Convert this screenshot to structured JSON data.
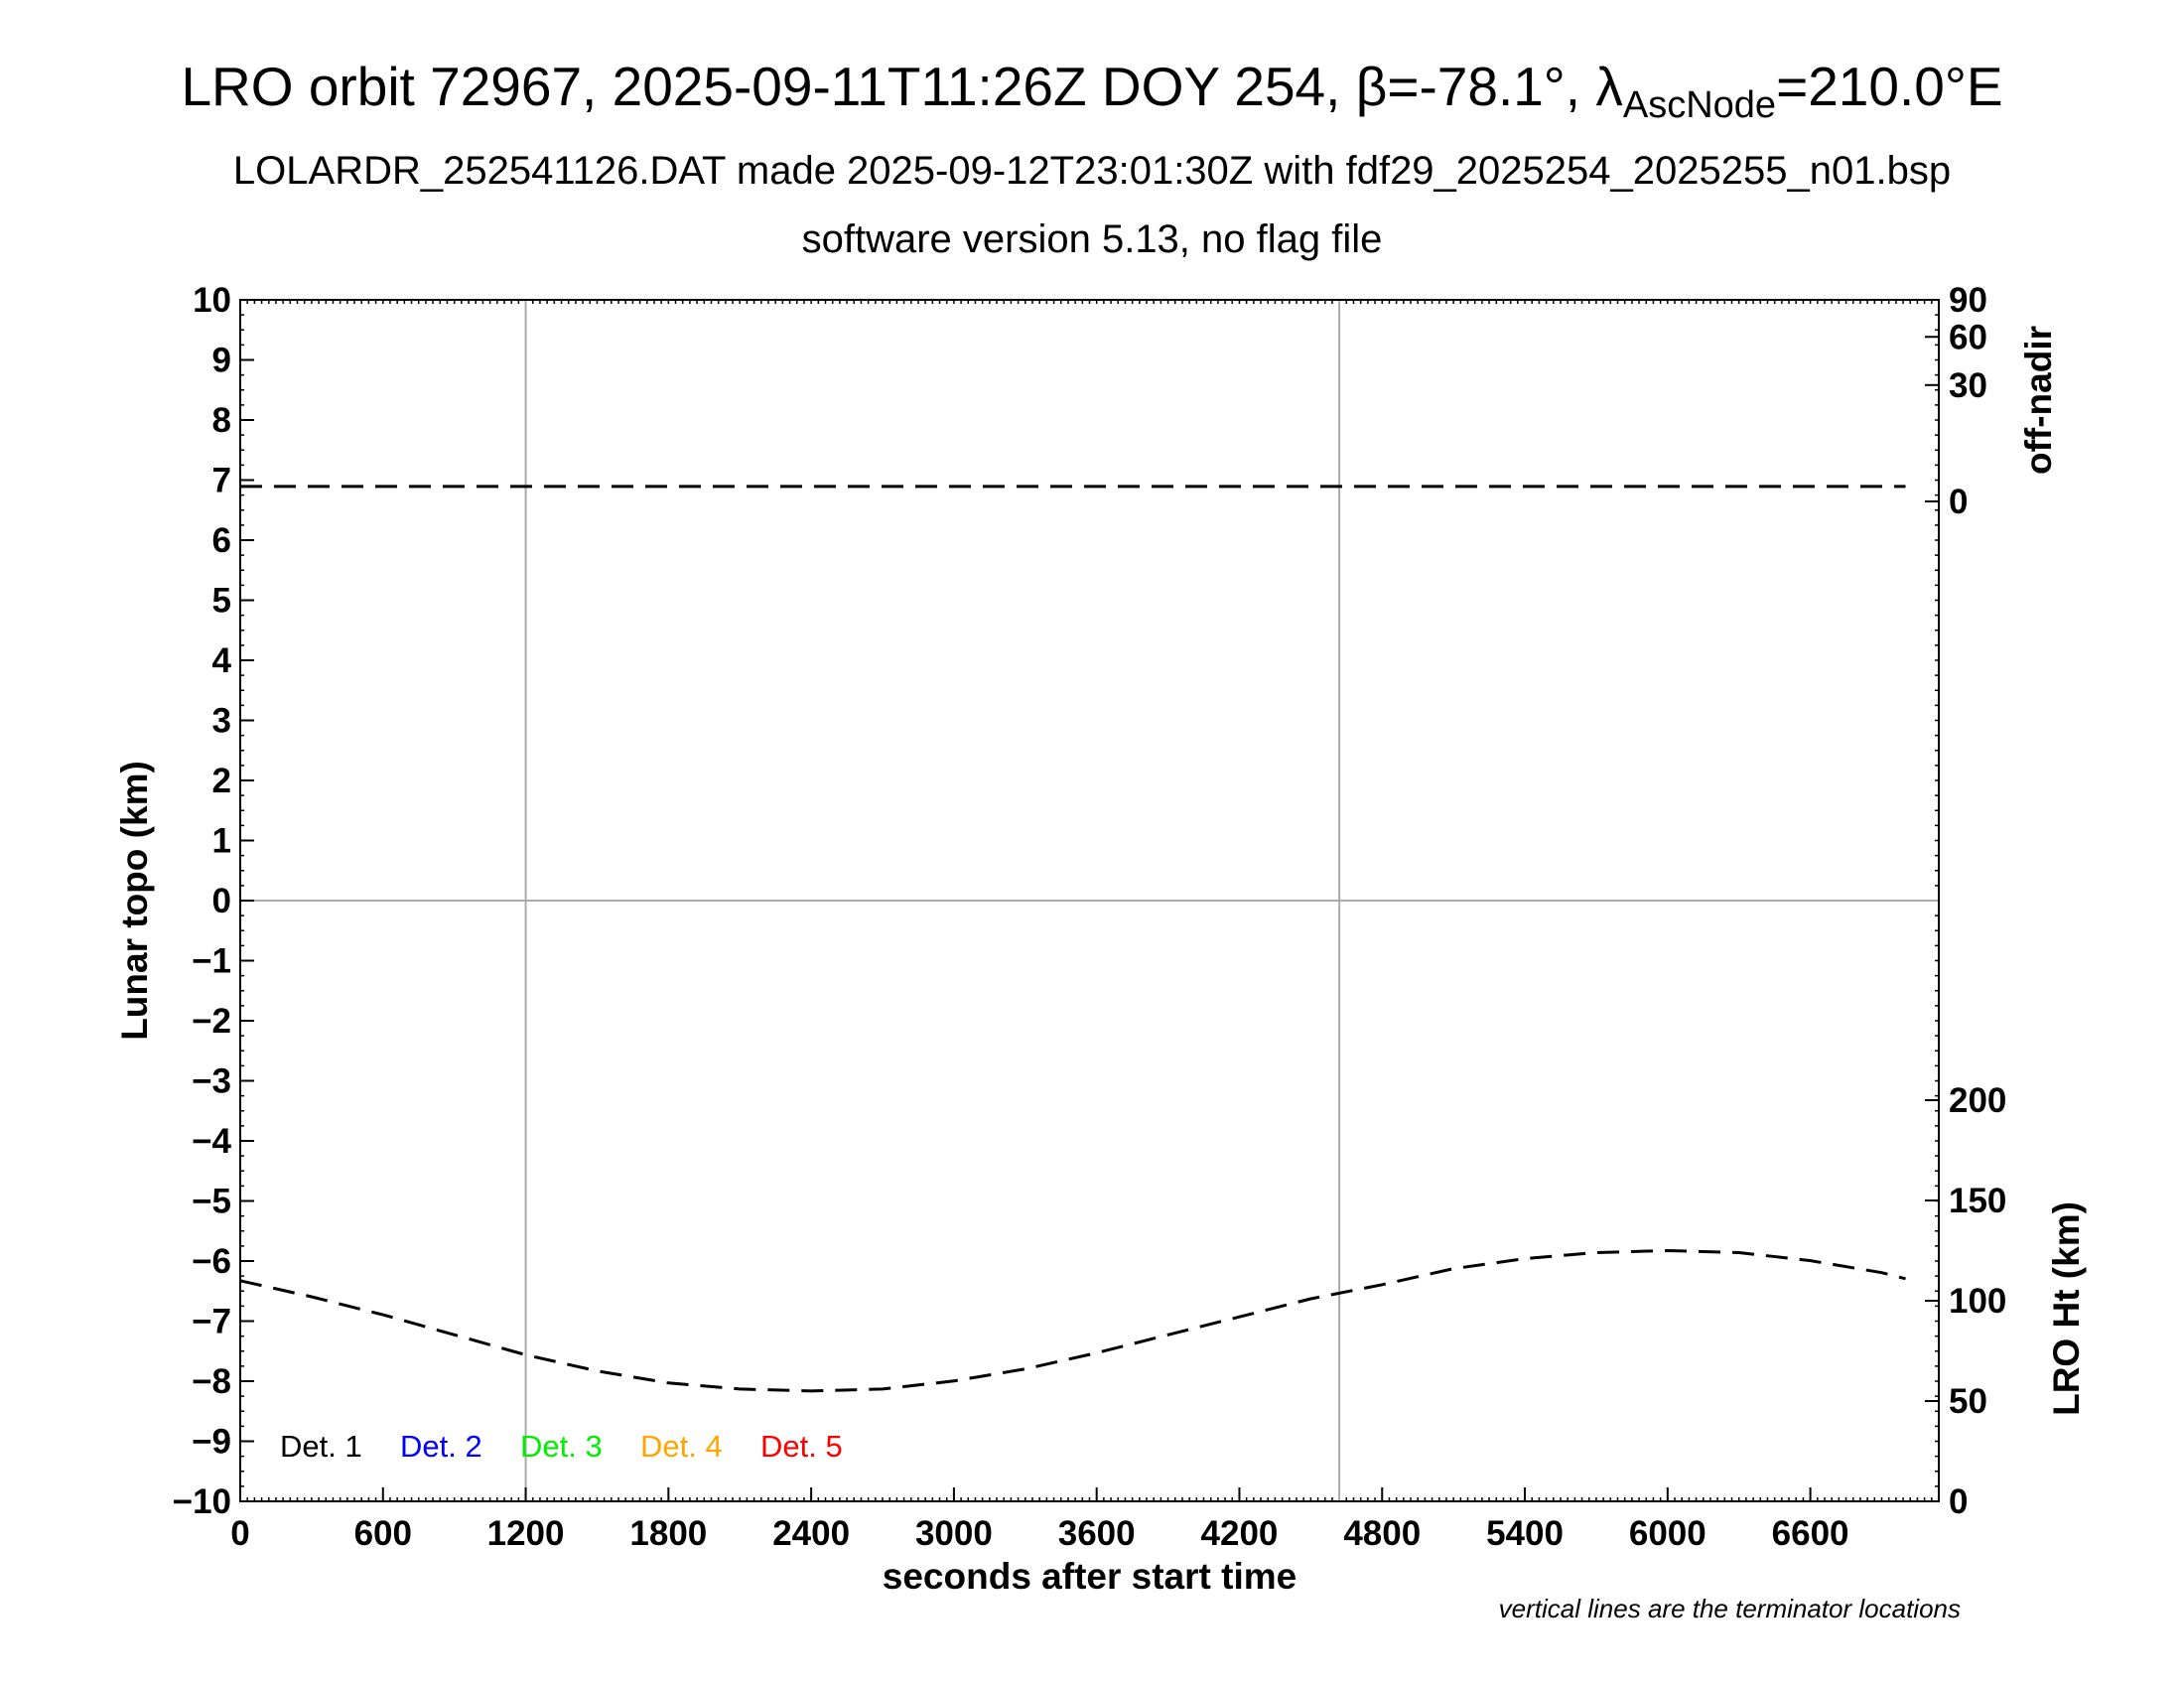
{
  "header": {
    "title_main": "LRO orbit 72967, 2025-09-11T11:26Z DOY 254, β=-78.1°, λ",
    "title_sub": "AscNode",
    "title_tail": "=210.0°E",
    "subtitle_1": "LOLARDR_252541126.DAT made 2025-09-12T23:01:30Z with fdf29_2025254_2025255_n01.bsp",
    "subtitle_2": "software version 5.13, no flag file"
  },
  "chart_data": {
    "type": "line",
    "title": "LRO orbit 72967, 2025-09-11T11:26Z DOY 254, β=-78.1°, λAscNode=210.0°E",
    "xlabel": "seconds after start time",
    "ylabel": "Lunar topo (km)",
    "y2label_top": "off-nadir",
    "y2label_bottom": "LRO Ht (km)",
    "xlim": [
      0,
      7140
    ],
    "ylim": [
      -10,
      10
    ],
    "x_ticks": [
      0,
      600,
      1200,
      1800,
      2400,
      3000,
      3600,
      4200,
      4800,
      5400,
      6000,
      6600
    ],
    "y_ticks": [
      10,
      9,
      8,
      7,
      6,
      5,
      4,
      3,
      2,
      1,
      0,
      -1,
      -2,
      -3,
      -4,
      -5,
      -6,
      -7,
      -8,
      -9,
      -10
    ],
    "y_tick_labels": [
      "10",
      "9",
      "8",
      "7",
      "6",
      "5",
      "4",
      "3",
      "2",
      "1",
      "0",
      "−1",
      "−2",
      "−3",
      "−4",
      "−5",
      "−6",
      "−7",
      "−8",
      "−9",
      "−10"
    ],
    "offnadir_axis": {
      "range": [
        0,
        90
      ],
      "ticks": [
        0,
        30,
        60,
        90
      ]
    },
    "height_axis": {
      "range": [
        0,
        200
      ],
      "ticks": [
        0,
        50,
        100,
        150,
        200
      ]
    },
    "terminator_lines_x": [
      1200,
      4620
    ],
    "horizontal_reference_y": 0,
    "series": [
      {
        "name": "off-nadir",
        "axis": "offnadir",
        "style": "dashed",
        "x": [
          0,
          1200,
          2400,
          3600,
          4800,
          6000,
          7000
        ],
        "values": [
          0.5,
          0.5,
          0.5,
          0.5,
          0.5,
          0.5,
          0.5
        ]
      },
      {
        "name": "LRO Ht",
        "axis": "height",
        "style": "dashed",
        "x": [
          0,
          300,
          600,
          900,
          1200,
          1500,
          1800,
          2100,
          2400,
          2700,
          3000,
          3300,
          3600,
          3900,
          4200,
          4500,
          4800,
          5100,
          5400,
          5700,
          6000,
          6300,
          6600,
          6900,
          7000
        ],
        "values": [
          110,
          102,
          93,
          83,
          73,
          65,
          59,
          56,
          55,
          56,
          60,
          66,
          74,
          83,
          92,
          101,
          108,
          116,
          121,
          124,
          125,
          124,
          120,
          114,
          111
        ]
      }
    ],
    "legend": {
      "position": "bottom-left",
      "entries": [
        {
          "label": "Det. 1",
          "color": "#000000"
        },
        {
          "label": "Det. 2",
          "color": "#0000ff"
        },
        {
          "label": "Det. 3",
          "color": "#00ee00"
        },
        {
          "label": "Det. 4",
          "color": "#ffa500"
        },
        {
          "label": "Det. 5",
          "color": "#ff0000"
        }
      ]
    },
    "annotation": "vertical lines are the terminator locations",
    "grid": false
  }
}
